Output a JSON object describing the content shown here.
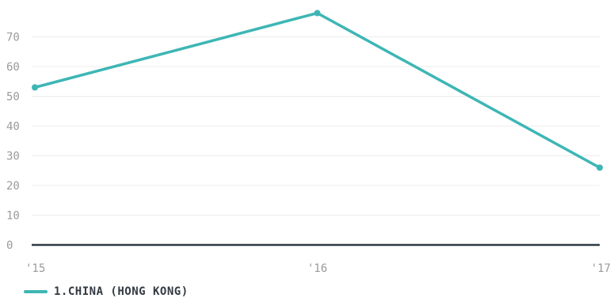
{
  "chart_data": {
    "type": "line",
    "categories": [
      "'15",
      "'16",
      "'17"
    ],
    "series": [
      {
        "name": "1.CHINA (HONG KONG)",
        "values": [
          53,
          78,
          26
        ],
        "color": "#3db6b5"
      }
    ],
    "yticks": [
      0,
      10,
      20,
      30,
      40,
      50,
      60,
      70
    ],
    "ylim": [
      0,
      80
    ],
    "grid": true,
    "legend_position": "bottom-left",
    "baseline_color": "#2d3a44",
    "grid_color": "#ececec"
  }
}
